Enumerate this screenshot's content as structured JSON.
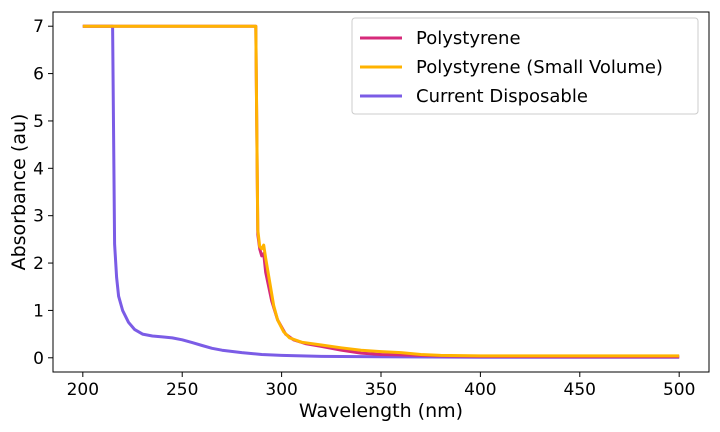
{
  "chart_data": {
    "type": "line",
    "title": "",
    "xlabel": "Wavelength (nm)",
    "ylabel": "Absorbance (au)",
    "xlim": [
      185,
      515
    ],
    "ylim": [
      -0.3,
      7.3
    ],
    "xticks": [
      200,
      250,
      300,
      350,
      400,
      450,
      500
    ],
    "yticks": [
      0,
      1,
      2,
      3,
      4,
      5,
      6,
      7
    ],
    "grid": false,
    "legend_position": "top-right",
    "series": [
      {
        "name": "Polystyrene",
        "color": "#d62a7a",
        "points": [
          [
            200,
            7.0
          ],
          [
            287,
            7.0
          ],
          [
            288,
            2.6
          ],
          [
            289,
            2.3
          ],
          [
            290,
            2.15
          ],
          [
            291,
            2.2
          ],
          [
            292,
            1.8
          ],
          [
            295,
            1.2
          ],
          [
            298,
            0.8
          ],
          [
            302,
            0.5
          ],
          [
            306,
            0.38
          ],
          [
            312,
            0.3
          ],
          [
            320,
            0.24
          ],
          [
            330,
            0.16
          ],
          [
            340,
            0.1
          ],
          [
            350,
            0.07
          ],
          [
            360,
            0.06
          ],
          [
            370,
            0.05
          ],
          [
            380,
            0.04
          ],
          [
            400,
            0.03
          ],
          [
            450,
            0.02
          ],
          [
            500,
            0.02
          ]
        ]
      },
      {
        "name": "Polystyrene (Small Volume)",
        "color": "#ffb300",
        "points": [
          [
            200,
            7.0
          ],
          [
            287,
            7.0
          ],
          [
            288,
            2.7
          ],
          [
            289,
            2.35
          ],
          [
            290,
            2.3
          ],
          [
            291,
            2.38
          ],
          [
            292,
            2.1
          ],
          [
            294,
            1.6
          ],
          [
            296,
            1.1
          ],
          [
            298,
            0.8
          ],
          [
            301,
            0.55
          ],
          [
            304,
            0.42
          ],
          [
            310,
            0.33
          ],
          [
            320,
            0.27
          ],
          [
            330,
            0.21
          ],
          [
            340,
            0.16
          ],
          [
            350,
            0.13
          ],
          [
            360,
            0.11
          ],
          [
            370,
            0.07
          ],
          [
            380,
            0.05
          ],
          [
            400,
            0.04
          ],
          [
            450,
            0.04
          ],
          [
            500,
            0.04
          ]
        ]
      },
      {
        "name": "Current Disposable",
        "color": "#7b5ce6",
        "points": [
          [
            200,
            7.0
          ],
          [
            215,
            7.0
          ],
          [
            216,
            2.4
          ],
          [
            217,
            1.7
          ],
          [
            218,
            1.3
          ],
          [
            220,
            1.0
          ],
          [
            223,
            0.75
          ],
          [
            226,
            0.6
          ],
          [
            230,
            0.5
          ],
          [
            235,
            0.46
          ],
          [
            240,
            0.44
          ],
          [
            245,
            0.42
          ],
          [
            250,
            0.38
          ],
          [
            255,
            0.32
          ],
          [
            260,
            0.26
          ],
          [
            265,
            0.2
          ],
          [
            270,
            0.16
          ],
          [
            280,
            0.11
          ],
          [
            290,
            0.07
          ],
          [
            300,
            0.05
          ],
          [
            320,
            0.03
          ],
          [
            350,
            0.02
          ],
          [
            400,
            0.01
          ],
          [
            500,
            0.01
          ]
        ]
      }
    ]
  }
}
